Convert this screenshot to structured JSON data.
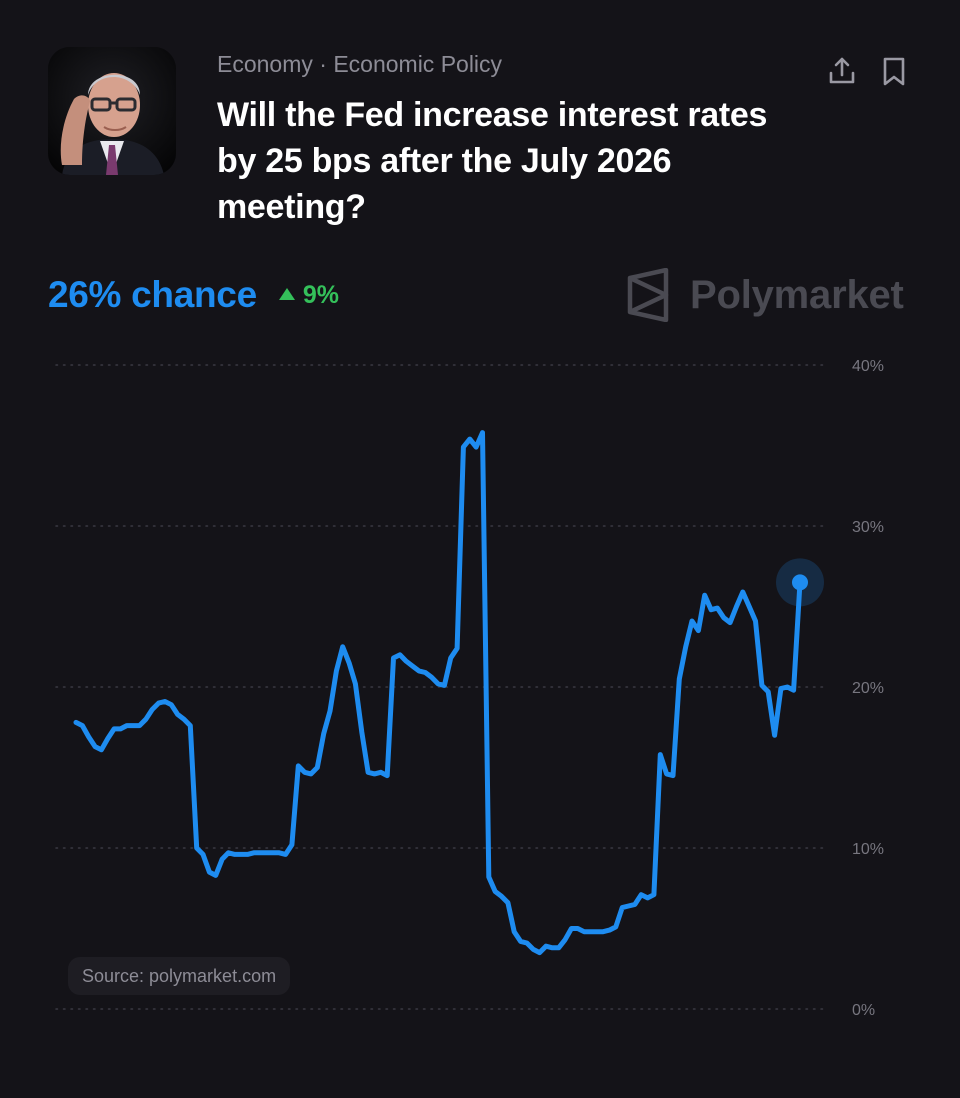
{
  "header": {
    "breadcrumb": "Economy · Economic Policy",
    "title": "Will the Fed increase interest rates by 25 bps after the July 2026 meeting?",
    "share_icon": "share-upload-icon",
    "bookmark_icon": "bookmark-icon"
  },
  "market": {
    "chance_text": "26% chance",
    "change_text": "9%",
    "change_direction": "up"
  },
  "brand": {
    "name": "Polymarket",
    "icon": "polymarket-logo-icon"
  },
  "source": "Source: polymarket.com",
  "colors": {
    "background": "#141318",
    "line": "#1e8cf0",
    "positive": "#34c05a",
    "muted": "#8d8c96"
  },
  "chart_data": {
    "type": "line",
    "title": "",
    "xlabel": "",
    "ylabel": "",
    "ylim": [
      0,
      40
    ],
    "yticks": [
      0,
      10,
      20,
      30,
      40
    ],
    "ytick_labels": [
      "0%",
      "10%",
      "20%",
      "30%",
      "40%"
    ],
    "grid": "horizontal-dotted",
    "last_point_marker": true,
    "series": [
      {
        "values": [
          17.8,
          17.6,
          16.9,
          16.3,
          16.1,
          16.8,
          17.4,
          17.4,
          17.6,
          17.6,
          17.6,
          18.0,
          18.6,
          19.0,
          19.1,
          18.9,
          18.3,
          18.0,
          17.6,
          10.0,
          9.6,
          8.5,
          8.3,
          9.3,
          9.7,
          9.6,
          9.6,
          9.6,
          9.7,
          9.7,
          9.7,
          9.7,
          9.7,
          9.6,
          10.2,
          15.1,
          14.7,
          14.6,
          15.0,
          17.1,
          18.5,
          21.0,
          22.5,
          21.5,
          20.2,
          17.2,
          14.7,
          14.6,
          14.7,
          14.5,
          21.8,
          22.0,
          21.6,
          21.3,
          21.0,
          20.9,
          20.6,
          20.2,
          20.1,
          21.8,
          22.4,
          34.9,
          35.4,
          34.9,
          35.8,
          8.2,
          7.3,
          7.0,
          6.6,
          4.8,
          4.2,
          4.1,
          3.7,
          3.5,
          3.9,
          3.8,
          3.8,
          4.3,
          5.0,
          5.0,
          4.8,
          4.8,
          4.8,
          4.8,
          4.9,
          5.1,
          6.3,
          6.4,
          6.5,
          7.1,
          6.9,
          7.1,
          15.8,
          14.6,
          14.5,
          20.5,
          22.5,
          24.1,
          23.5,
          25.7,
          24.8,
          24.9,
          24.3,
          24.0,
          25.0,
          25.9,
          25.0,
          24.1,
          20.1,
          19.7,
          17.0,
          19.9,
          20.0,
          19.8,
          26.5
        ]
      }
    ]
  }
}
